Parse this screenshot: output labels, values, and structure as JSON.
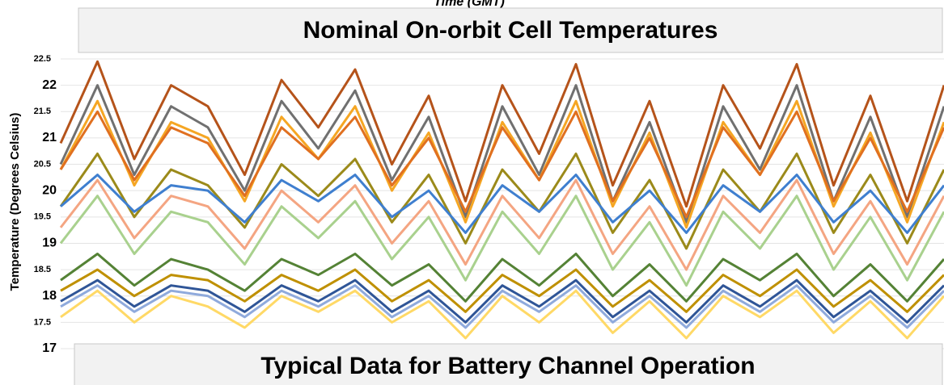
{
  "chart_data": {
    "type": "line",
    "title": "Nominal On-orbit Cell Temperatures",
    "subtitle": "Typical Data for Battery Channel Operation",
    "x_label": "Time (GMT)",
    "y_label": "Temperature (Degrees Celsius)",
    "ylim": [
      17,
      22.5
    ],
    "yticks": [
      17,
      17.5,
      18,
      18.5,
      19,
      19.5,
      20,
      20.5,
      21,
      21.5,
      22,
      22.5
    ],
    "grid": true,
    "categories": [
      null,
      null,
      null,
      null,
      null,
      null,
      null,
      null,
      null,
      null,
      null,
      null,
      null,
      null,
      null,
      null,
      null,
      null,
      null,
      null,
      null,
      null,
      null,
      null,
      null
    ],
    "series": [
      {
        "color": "#b5531a",
        "values": [
          20.9,
          22.45,
          20.6,
          22.0,
          21.6,
          20.3,
          22.1,
          21.2,
          22.3,
          20.5,
          21.8,
          19.8,
          22.0,
          20.7,
          22.4,
          20.1,
          21.7,
          19.7,
          22.0,
          20.8,
          22.4,
          20.1,
          21.8,
          19.8,
          22.0
        ]
      },
      {
        "color": "#707070",
        "values": [
          20.5,
          22.0,
          20.3,
          21.6,
          21.2,
          20.0,
          21.7,
          20.8,
          21.9,
          20.2,
          21.4,
          19.5,
          21.6,
          20.3,
          22.0,
          19.8,
          21.3,
          19.4,
          21.6,
          20.4,
          22.0,
          19.8,
          21.4,
          19.5,
          21.6
        ]
      },
      {
        "color": "#f5a623",
        "values": [
          20.4,
          21.7,
          20.1,
          21.3,
          21.0,
          19.8,
          21.4,
          20.6,
          21.6,
          20.0,
          21.1,
          19.4,
          21.3,
          20.2,
          21.7,
          19.7,
          21.1,
          19.3,
          21.3,
          20.3,
          21.7,
          19.7,
          21.1,
          19.4,
          21.3
        ]
      },
      {
        "color": "#e07020",
        "values": [
          20.4,
          21.5,
          20.2,
          21.2,
          20.9,
          19.9,
          21.2,
          20.6,
          21.4,
          20.1,
          21.0,
          19.6,
          21.2,
          20.2,
          21.5,
          19.8,
          21.0,
          19.5,
          21.2,
          20.3,
          21.5,
          19.8,
          21.0,
          19.6,
          21.2
        ]
      },
      {
        "color": "#9b8a1a",
        "values": [
          19.7,
          20.7,
          19.5,
          20.4,
          20.1,
          19.3,
          20.5,
          19.9,
          20.6,
          19.4,
          20.3,
          19.0,
          20.4,
          19.6,
          20.7,
          19.2,
          20.2,
          18.9,
          20.4,
          19.6,
          20.7,
          19.2,
          20.3,
          19.0,
          20.4
        ]
      },
      {
        "color": "#3f7fcf",
        "values": [
          19.7,
          20.3,
          19.6,
          20.1,
          20.0,
          19.4,
          20.2,
          19.8,
          20.3,
          19.5,
          20.0,
          19.2,
          20.1,
          19.6,
          20.3,
          19.4,
          20.0,
          19.2,
          20.1,
          19.6,
          20.3,
          19.4,
          20.0,
          19.2,
          20.1
        ]
      },
      {
        "color": "#f4a582",
        "values": [
          19.3,
          20.2,
          19.1,
          19.9,
          19.7,
          18.9,
          20.0,
          19.4,
          20.1,
          19.0,
          19.8,
          18.6,
          19.9,
          19.1,
          20.2,
          18.8,
          19.7,
          18.5,
          19.9,
          19.2,
          20.2,
          18.8,
          19.8,
          18.6,
          19.9
        ]
      },
      {
        "color": "#a9d18e",
        "values": [
          19.0,
          19.9,
          18.8,
          19.6,
          19.4,
          18.6,
          19.7,
          19.1,
          19.8,
          18.7,
          19.5,
          18.3,
          19.6,
          18.8,
          19.9,
          18.5,
          19.4,
          18.2,
          19.6,
          18.9,
          19.9,
          18.5,
          19.5,
          18.3,
          19.6
        ]
      },
      {
        "color": "#548235",
        "values": [
          18.3,
          18.8,
          18.2,
          18.7,
          18.5,
          18.1,
          18.7,
          18.4,
          18.8,
          18.2,
          18.6,
          17.9,
          18.7,
          18.2,
          18.8,
          18.0,
          18.6,
          17.9,
          18.7,
          18.3,
          18.8,
          18.0,
          18.6,
          17.9,
          18.7
        ]
      },
      {
        "color": "#bf9000",
        "values": [
          18.1,
          18.5,
          18.0,
          18.4,
          18.3,
          17.9,
          18.4,
          18.1,
          18.5,
          17.9,
          18.3,
          17.7,
          18.4,
          18.0,
          18.5,
          17.8,
          18.3,
          17.7,
          18.4,
          18.0,
          18.5,
          17.8,
          18.3,
          17.7,
          18.4
        ]
      },
      {
        "color": "#2f5597",
        "values": [
          17.9,
          18.3,
          17.8,
          18.2,
          18.1,
          17.7,
          18.2,
          17.9,
          18.3,
          17.7,
          18.1,
          17.5,
          18.2,
          17.8,
          18.3,
          17.6,
          18.1,
          17.5,
          18.2,
          17.8,
          18.3,
          17.6,
          18.1,
          17.5,
          18.2
        ]
      },
      {
        "color": "#8faadc",
        "values": [
          17.8,
          18.2,
          17.7,
          18.1,
          18.0,
          17.6,
          18.1,
          17.8,
          18.2,
          17.6,
          18.0,
          17.4,
          18.1,
          17.7,
          18.2,
          17.5,
          18.0,
          17.4,
          18.1,
          17.7,
          18.2,
          17.5,
          18.0,
          17.4,
          18.1
        ]
      },
      {
        "color": "#ffd966",
        "values": [
          17.6,
          18.1,
          17.5,
          18.0,
          17.8,
          17.4,
          18.0,
          17.7,
          18.1,
          17.5,
          17.9,
          17.2,
          18.0,
          17.5,
          18.1,
          17.3,
          17.9,
          17.2,
          18.0,
          17.6,
          18.1,
          17.3,
          17.9,
          17.2,
          18.0
        ]
      }
    ]
  }
}
